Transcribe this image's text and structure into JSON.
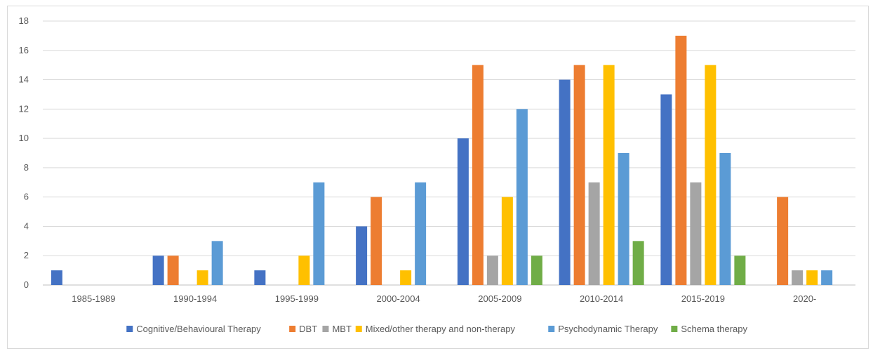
{
  "chart_data": {
    "type": "bar",
    "title": "",
    "xlabel": "",
    "ylabel": "",
    "ylim": [
      0,
      18
    ],
    "ytick_step": 2,
    "grid": true,
    "legend_position": "bottom",
    "categories": [
      "1985-1989",
      "1990-1994",
      "1995-1999",
      "2000-2004",
      "2005-2009",
      "2010-2014",
      "2015-2019",
      "2020-"
    ],
    "series": [
      {
        "name": "Cognitive/Behavioural Therapy",
        "color": "#4472c4",
        "values": [
          1,
          2,
          1,
          4,
          10,
          14,
          13,
          0
        ]
      },
      {
        "name": "DBT",
        "color": "#ed7d31",
        "values": [
          0,
          2,
          0,
          6,
          15,
          15,
          17,
          6
        ]
      },
      {
        "name": "MBT",
        "color": "#a5a5a5",
        "values": [
          0,
          0,
          0,
          0,
          2,
          7,
          7,
          1
        ]
      },
      {
        "name": "Mixed/other therapy and non-therapy",
        "color": "#ffc000",
        "values": [
          0,
          1,
          2,
          1,
          6,
          15,
          15,
          1
        ]
      },
      {
        "name": "Psychodynamic Therapy",
        "color": "#5b9bd5",
        "values": [
          0,
          3,
          7,
          7,
          12,
          9,
          9,
          1
        ]
      },
      {
        "name": "Schema therapy",
        "color": "#70ad47",
        "values": [
          0,
          0,
          0,
          0,
          2,
          3,
          2,
          0
        ]
      }
    ]
  }
}
